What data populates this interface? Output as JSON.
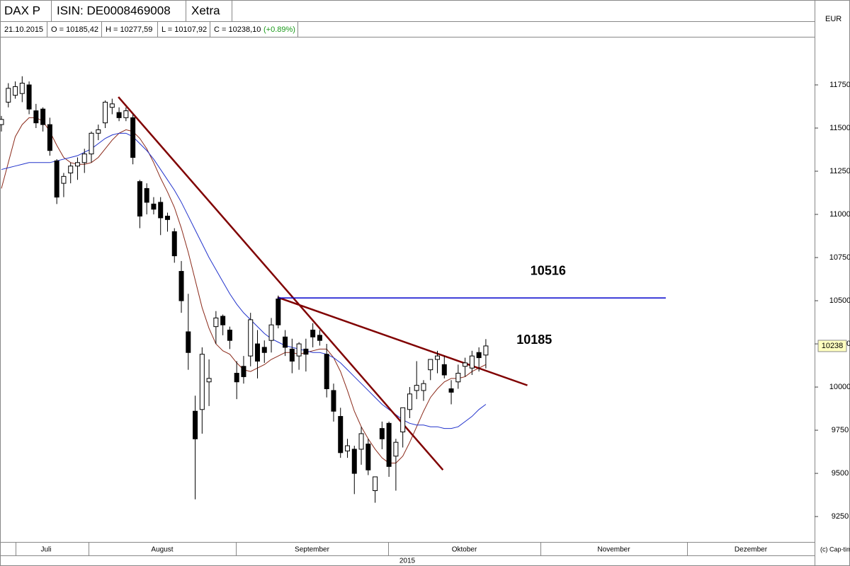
{
  "chart_data": {
    "type": "candlestick",
    "header": {
      "name": "DAX P",
      "isin": "ISIN: DE0008469008",
      "exchange": "Xetra"
    },
    "info": {
      "date": "21.10.2015",
      "open": "O = 10185,42",
      "high": "H = 10277,59",
      "low": "L = 10107,92",
      "close": "C = 10238,10",
      "change": "(+0.89%)"
    },
    "currency": "EUR",
    "copyright": "(c) Cap-timizer",
    "months": [
      "Juli",
      "August",
      "September",
      "Oktober",
      "November",
      "Dezember"
    ],
    "year": "2015",
    "ylim": [
      9107,
      12004
    ],
    "yticks": [
      9250,
      9500,
      9750,
      10000,
      10250,
      10500,
      10750,
      11000,
      11250,
      11500,
      11750
    ],
    "last_label": "10238",
    "open": [
      11520,
      11650,
      11690,
      11700,
      11750,
      11600,
      11610,
      11520,
      11310,
      11180,
      11240,
      11280,
      11300,
      11350,
      11470,
      11530,
      11620,
      11590,
      11560,
      11560,
      11190,
      11150,
      11060,
      11070,
      10990,
      10900,
      10670,
      10320,
      9860,
      9870,
      10030,
      10350,
      10410,
      10330,
      10080,
      10120,
      10180,
      10250,
      10230,
      10270,
      10510,
      10290,
      10220,
      10180,
      10220,
      10330,
      10300,
      10190,
      9980,
      9830,
      9630,
      9640,
      9640,
      9670,
      9400,
      9760,
      9790,
      9600,
      9740,
      9870,
      9980,
      9980,
      10100,
      10160,
      10130,
      9990,
      10030,
      10120,
      10110,
      10200,
      10185.42
    ],
    "high": [
      11570,
      11760,
      11770,
      11800,
      11770,
      11640,
      11620,
      11560,
      11320,
      11240,
      11300,
      11330,
      11380,
      11480,
      11520,
      11660,
      11670,
      11620,
      11620,
      11580,
      11200,
      11180,
      11100,
      11100,
      11010,
      10920,
      10730,
      10540,
      9950,
      10230,
      10160,
      10440,
      10420,
      10350,
      10150,
      10180,
      10430,
      10330,
      10270,
      10400,
      10530,
      10330,
      10280,
      10260,
      10280,
      10370,
      10330,
      10250,
      10020,
      9880,
      9700,
      9660,
      9770,
      9700,
      9460,
      9800,
      9800,
      9700,
      9880,
      10000,
      10150,
      10040,
      10160,
      10210,
      10180,
      10040,
      10130,
      10170,
      10210,
      10230,
      10277.59
    ],
    "low": [
      11480,
      11620,
      11670,
      11650,
      11580,
      11500,
      11480,
      11340,
      11060,
      11100,
      11180,
      11200,
      11240,
      11300,
      11430,
      11500,
      11580,
      11540,
      11540,
      11290,
      10920,
      11000,
      11000,
      10880,
      10900,
      10720,
      10430,
      10100,
      9350,
      9730,
      9890,
      10250,
      10300,
      10220,
      9930,
      10020,
      10120,
      10050,
      10140,
      10200,
      10340,
      10180,
      10080,
      10100,
      10090,
      10230,
      10240,
      9940,
      9800,
      9590,
      9590,
      9380,
      9550,
      9490,
      9330,
      9640,
      9480,
      9400,
      9650,
      9820,
      9930,
      9920,
      10040,
      10080,
      10050,
      9900,
      9990,
      10060,
      10070,
      10090,
      10107.92
    ],
    "close": [
      11550,
      11730,
      11740,
      11760,
      11610,
      11530,
      11520,
      11370,
      11100,
      11220,
      11280,
      11300,
      11350,
      11470,
      11490,
      11650,
      11640,
      11560,
      11600,
      11330,
      10990,
      11070,
      11030,
      10980,
      10970,
      10760,
      10500,
      10200,
      9700,
      10190,
      10050,
      10400,
      10360,
      10270,
      10030,
      10060,
      10390,
      10150,
      10200,
      10360,
      10360,
      10230,
      10150,
      10250,
      10190,
      10290,
      10270,
      9990,
      9860,
      9620,
      9660,
      9500,
      9730,
      9520,
      9480,
      9700,
      9540,
      9680,
      9880,
      9960,
      10010,
      10020,
      10160,
      10180,
      10070,
      9970,
      10080,
      10140,
      10180,
      10170,
      10238.1
    ],
    "series": [
      {
        "color": "#8b2a1a",
        "values": [
          11150,
          11300,
          11450,
          11520,
          11560,
          11560,
          11540,
          11480,
          11400,
          11330,
          11300,
          11290,
          11290,
          11300,
          11330,
          11380,
          11430,
          11470,
          11490,
          11480,
          11440,
          11380,
          11300,
          11210,
          11130,
          11040,
          10920,
          10780,
          10620,
          10460,
          10340,
          10250,
          10210,
          10190,
          10140,
          10100,
          10090,
          10110,
          10130,
          10160,
          10180,
          10200,
          10200,
          10190,
          10200,
          10210,
          10220,
          10220,
          10170,
          10090,
          9980,
          9860,
          9770,
          9700,
          9640,
          9590,
          9560,
          9560,
          9600,
          9680,
          9770,
          9860,
          9940,
          9990,
          10030,
          10050,
          10050,
          10060,
          10090,
          10110,
          10130
        ]
      },
      {
        "color": "#2233cc",
        "values": [
          11260,
          11270,
          11280,
          11290,
          11300,
          11300,
          11300,
          11300,
          11310,
          11320,
          11330,
          11340,
          11360,
          11380,
          11410,
          11440,
          11460,
          11470,
          11470,
          11450,
          11410,
          11370,
          11320,
          11260,
          11200,
          11140,
          11070,
          10990,
          10910,
          10830,
          10750,
          10680,
          10610,
          10540,
          10480,
          10430,
          10390,
          10350,
          10310,
          10280,
          10260,
          10240,
          10230,
          10220,
          10210,
          10200,
          10200,
          10190,
          10170,
          10140,
          10100,
          10060,
          10020,
          9980,
          9940,
          9900,
          9870,
          9840,
          9810,
          9790,
          9780,
          9780,
          9770,
          9770,
          9760,
          9760,
          9770,
          9800,
          9830,
          9870,
          9900
        ]
      }
    ],
    "trendlines": [
      {
        "color": "#800000",
        "x": [
          16.9,
          63.8
        ],
        "y": [
          11680,
          9520
        ]
      },
      {
        "color": "#800000",
        "x": [
          39.9,
          76
        ],
        "y": [
          10520,
          10010
        ]
      },
      {
        "color": "#0000cc",
        "x": [
          39.9,
          96
        ],
        "y": [
          10516,
          10516
        ]
      }
    ],
    "annotations": [
      {
        "text": "10516",
        "x": 79,
        "y": 10670
      },
      {
        "text": "10185",
        "x": 77,
        "y": 10270
      }
    ]
  }
}
